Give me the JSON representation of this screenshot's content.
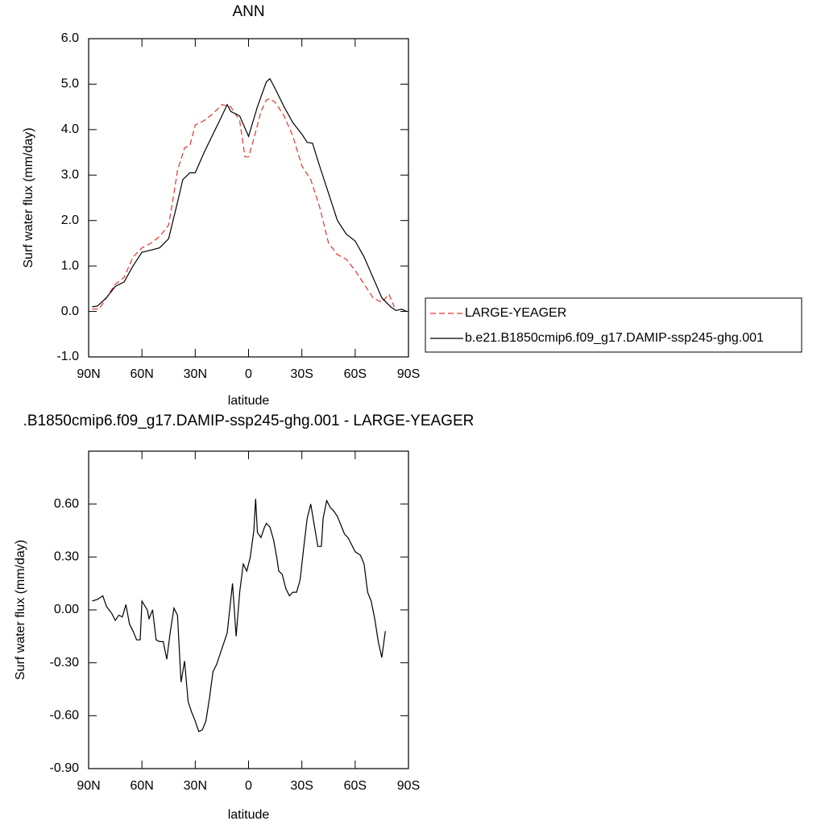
{
  "chart_data": [
    {
      "type": "line",
      "title": "ANN",
      "xlabel": "latitude",
      "ylabel": "Surf water flux (mm/day)",
      "xlim": [
        90,
        -90
      ],
      "xticks": [
        {
          "value": 90,
          "label": "90N"
        },
        {
          "value": 60,
          "label": "60N"
        },
        {
          "value": 30,
          "label": "30N"
        },
        0,
        {
          "value": -30,
          "label": "30S"
        },
        {
          "value": -60,
          "label": "60S"
        },
        {
          "value": -90,
          "label": "90S"
        }
      ],
      "ylim": [
        -1,
        6
      ],
      "yticks": [
        {
          "value": -1,
          "label": "-1.0"
        },
        {
          "value": 0,
          "label": "0.0"
        },
        {
          "value": 1,
          "label": "1.0"
        },
        {
          "value": 2,
          "label": "2.0"
        },
        {
          "value": 3,
          "label": "3.0"
        },
        {
          "value": 4,
          "label": "4.0"
        },
        {
          "value": 5,
          "label": "5.0"
        },
        {
          "value": 6,
          "label": "6.0"
        }
      ],
      "legend": "right",
      "series": [
        {
          "name": "LARGE-YEAGER",
          "color": "#e8302a",
          "style": "dashed",
          "x": [
            88,
            84,
            80,
            75,
            70,
            65,
            60,
            55,
            50,
            45,
            42,
            40,
            36,
            33,
            30,
            25,
            20,
            15,
            10,
            5,
            2,
            0,
            -3,
            -7,
            -10,
            -12,
            -15,
            -20,
            -25,
            -30,
            -35,
            -40,
            -45,
            -50,
            -55,
            -60,
            -65,
            -70,
            -75,
            -79,
            -82
          ],
          "values": [
            0.05,
            0.06,
            0.3,
            0.6,
            0.75,
            1.2,
            1.4,
            1.5,
            1.65,
            1.9,
            2.6,
            3.1,
            3.6,
            3.65,
            4.1,
            4.2,
            4.35,
            4.55,
            4.5,
            4.2,
            3.4,
            3.4,
            3.8,
            4.4,
            4.65,
            4.68,
            4.6,
            4.3,
            3.85,
            3.2,
            2.9,
            2.3,
            1.5,
            1.25,
            1.15,
            0.9,
            0.6,
            0.3,
            0.2,
            0.38,
            0.1
          ]
        },
        {
          "name": "b.e21.B1850cmip6.f09_g17.DAMIP-ssp245-ghg.001",
          "color": "#000000",
          "style": "solid",
          "x": [
            88,
            85,
            80,
            75,
            70,
            65,
            60,
            55,
            50,
            45,
            40,
            37,
            33,
            30,
            25,
            20,
            15,
            12,
            10,
            5,
            0,
            -5,
            -10,
            -12,
            -15,
            -20,
            -25,
            -30,
            -33,
            -36,
            -40,
            -45,
            -50,
            -55,
            -60,
            -65,
            -70,
            -75,
            -80,
            -83,
            -86,
            -89
          ],
          "values": [
            0.1,
            0.12,
            0.3,
            0.55,
            0.65,
            1.0,
            1.3,
            1.35,
            1.4,
            1.6,
            2.4,
            2.9,
            3.05,
            3.05,
            3.5,
            3.9,
            4.3,
            4.55,
            4.4,
            4.3,
            3.85,
            4.5,
            5.05,
            5.12,
            4.9,
            4.5,
            4.15,
            3.9,
            3.72,
            3.7,
            3.2,
            2.6,
            2.0,
            1.7,
            1.55,
            1.2,
            0.75,
            0.3,
            0.1,
            0.02,
            0.05,
            0.0
          ]
        }
      ]
    },
    {
      "type": "line",
      "title": ".B1850cmip6.f09_g17.DAMIP-ssp245-ghg.001 - LARGE-YEAGER",
      "xlabel": "latitude",
      "ylabel": "Surf water flux (mm/day)",
      "xlim": [
        90,
        -90
      ],
      "xticks": [
        {
          "value": 90,
          "label": "90N"
        },
        {
          "value": 60,
          "label": "60N"
        },
        {
          "value": 30,
          "label": "30N"
        },
        0,
        {
          "value": -30,
          "label": "30S"
        },
        {
          "value": -60,
          "label": "60S"
        },
        {
          "value": -90,
          "label": "90S"
        }
      ],
      "ylim": [
        -0.9,
        0.9
      ],
      "yticks": [
        {
          "value": -0.9,
          "label": "-0.90"
        },
        {
          "value": -0.6,
          "label": "-0.60"
        },
        {
          "value": -0.3,
          "label": "-0.30"
        },
        {
          "value": 0,
          "label": "0.00"
        },
        {
          "value": 0.3,
          "label": "0.30"
        },
        {
          "value": 0.6,
          "label": "0.60"
        }
      ],
      "color": "#000000",
      "x": [
        88,
        85,
        82,
        80,
        77,
        75,
        73,
        71,
        69,
        67,
        65,
        63,
        61,
        60,
        57,
        56,
        54,
        52,
        50,
        48,
        46,
        44,
        42,
        40,
        38,
        36,
        34,
        32,
        30,
        28,
        26,
        24,
        22,
        20,
        18,
        15,
        12,
        9,
        7,
        5,
        3,
        1,
        -1,
        -3,
        -4,
        -5,
        -7,
        -9,
        -10,
        -12,
        -14,
        -16,
        -17,
        -19,
        -21,
        -23,
        -25,
        -27,
        -29,
        -31,
        -33,
        -35,
        -37,
        -39,
        -41,
        -42,
        -44,
        -46,
        -48,
        -50,
        -52,
        -54,
        -56,
        -58,
        -60,
        -63,
        -65,
        -67,
        -69,
        -71,
        -73,
        -75,
        -77
      ],
      "values": [
        0.05,
        0.06,
        0.08,
        0.02,
        -0.02,
        -0.06,
        -0.03,
        -0.04,
        0.03,
        -0.08,
        -0.12,
        -0.17,
        -0.17,
        0.05,
        0.0,
        -0.05,
        0.0,
        -0.17,
        -0.18,
        -0.18,
        -0.28,
        -0.12,
        0.01,
        -0.03,
        -0.41,
        -0.29,
        -0.52,
        -0.58,
        -0.63,
        -0.69,
        -0.68,
        -0.63,
        -0.5,
        -0.35,
        -0.31,
        -0.22,
        -0.13,
        0.15,
        -0.15,
        0.1,
        0.26,
        0.22,
        0.3,
        0.45,
        0.63,
        0.44,
        0.41,
        0.47,
        0.49,
        0.47,
        0.4,
        0.29,
        0.22,
        0.2,
        0.12,
        0.08,
        0.1,
        0.1,
        0.17,
        0.35,
        0.52,
        0.6,
        0.48,
        0.36,
        0.36,
        0.52,
        0.62,
        0.58,
        0.56,
        0.53,
        0.48,
        0.43,
        0.41,
        0.37,
        0.33,
        0.31,
        0.26,
        0.1,
        0.05,
        -0.05,
        -0.18,
        -0.27,
        -0.12
      ]
    }
  ]
}
